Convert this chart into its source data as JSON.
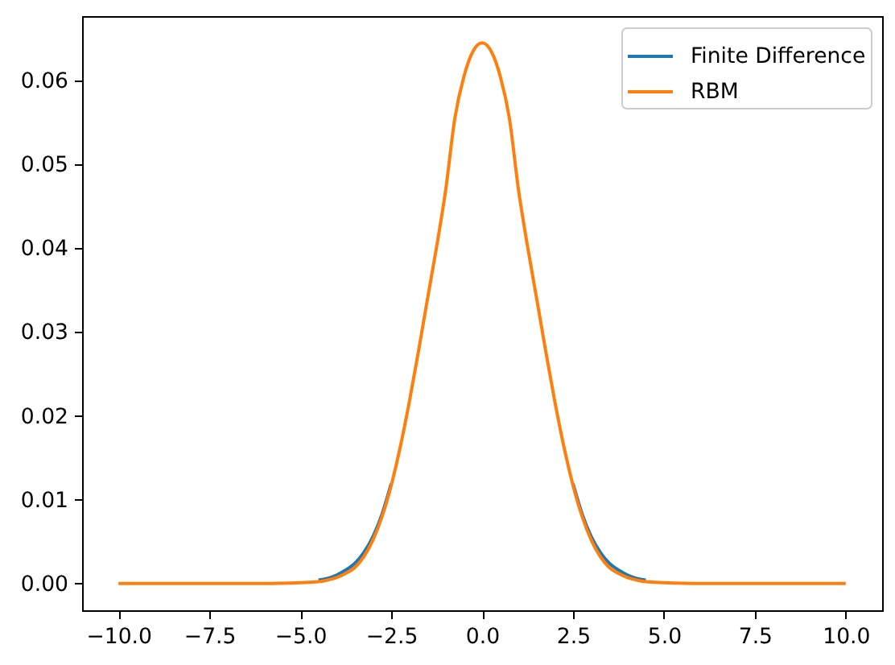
{
  "chart_data": {
    "type": "line",
    "x": [
      -10,
      -9,
      -8,
      -7,
      -6,
      -5,
      -4.5,
      -4.25,
      -4,
      -3.75,
      -3.5,
      -3.25,
      -3,
      -2.75,
      -2.5,
      -2.25,
      -2,
      -1.75,
      -1.5,
      -1.25,
      -1,
      -0.75,
      -0.5,
      -0.25,
      0,
      0.25,
      0.5,
      0.75,
      1,
      1.25,
      1.5,
      1.75,
      2,
      2.25,
      2.5,
      2.75,
      3,
      3.25,
      3.5,
      3.75,
      4,
      4.25,
      4.5,
      5,
      6,
      7,
      8,
      9,
      10
    ],
    "series": [
      {
        "name": "Finite Difference",
        "color": "#1f77b4",
        "values": [
          null,
          null,
          null,
          null,
          null,
          null,
          0.0004,
          0.0006,
          0.001,
          0.0016,
          0.0024,
          0.0037,
          0.0056,
          0.0083,
          0.0119,
          null,
          null,
          null,
          null,
          null,
          null,
          null,
          null,
          null,
          null,
          null,
          null,
          null,
          null,
          null,
          null,
          null,
          null,
          null,
          0.0119,
          0.0083,
          0.0056,
          0.0037,
          0.0024,
          0.0016,
          0.001,
          0.0006,
          0.0004,
          null,
          null,
          null,
          null,
          null,
          null
        ]
      },
      {
        "name": "RBM",
        "color": "#ff7f0e",
        "values": [
          0,
          0,
          0,
          0,
          0,
          0.0001,
          0.0002,
          0.0004,
          0.0007,
          0.0012,
          0.0019,
          0.0032,
          0.0052,
          0.008,
          0.0117,
          0.0163,
          0.0217,
          0.0277,
          0.034,
          0.0402,
          0.047,
          0.0555,
          0.0605,
          0.0635,
          0.0645,
          0.0635,
          0.0605,
          0.0555,
          0.047,
          0.0402,
          0.034,
          0.0277,
          0.0217,
          0.0163,
          0.0117,
          0.008,
          0.0052,
          0.0032,
          0.0019,
          0.0012,
          0.0007,
          0.0004,
          0.0002,
          0.0001,
          0,
          0,
          0,
          0,
          0
        ]
      }
    ],
    "xlim": [
      -11,
      11
    ],
    "xticks": [
      {
        "value": -10,
        "label": "−10.0"
      },
      {
        "value": -7.5,
        "label": "−7.5"
      },
      {
        "value": -5,
        "label": "−5.0"
      },
      {
        "value": -2.5,
        "label": "−2.5"
      },
      {
        "value": 0,
        "label": "0.0"
      },
      {
        "value": 2.5,
        "label": "2.5"
      },
      {
        "value": 5,
        "label": "5.0"
      },
      {
        "value": 7.5,
        "label": "7.5"
      },
      {
        "value": 10,
        "label": "10.0"
      }
    ],
    "ylim": [
      -0.0032,
      0.0677
    ],
    "yticks": [
      {
        "value": 0,
        "label": "0.00"
      },
      {
        "value": 0.01,
        "label": "0.01"
      },
      {
        "value": 0.02,
        "label": "0.02"
      },
      {
        "value": 0.03,
        "label": "0.03"
      },
      {
        "value": 0.04,
        "label": "0.04"
      },
      {
        "value": 0.05,
        "label": "0.05"
      },
      {
        "value": 0.06,
        "label": "0.06"
      }
    ],
    "legend": "top right",
    "grid": false,
    "line_style": "solid"
  }
}
